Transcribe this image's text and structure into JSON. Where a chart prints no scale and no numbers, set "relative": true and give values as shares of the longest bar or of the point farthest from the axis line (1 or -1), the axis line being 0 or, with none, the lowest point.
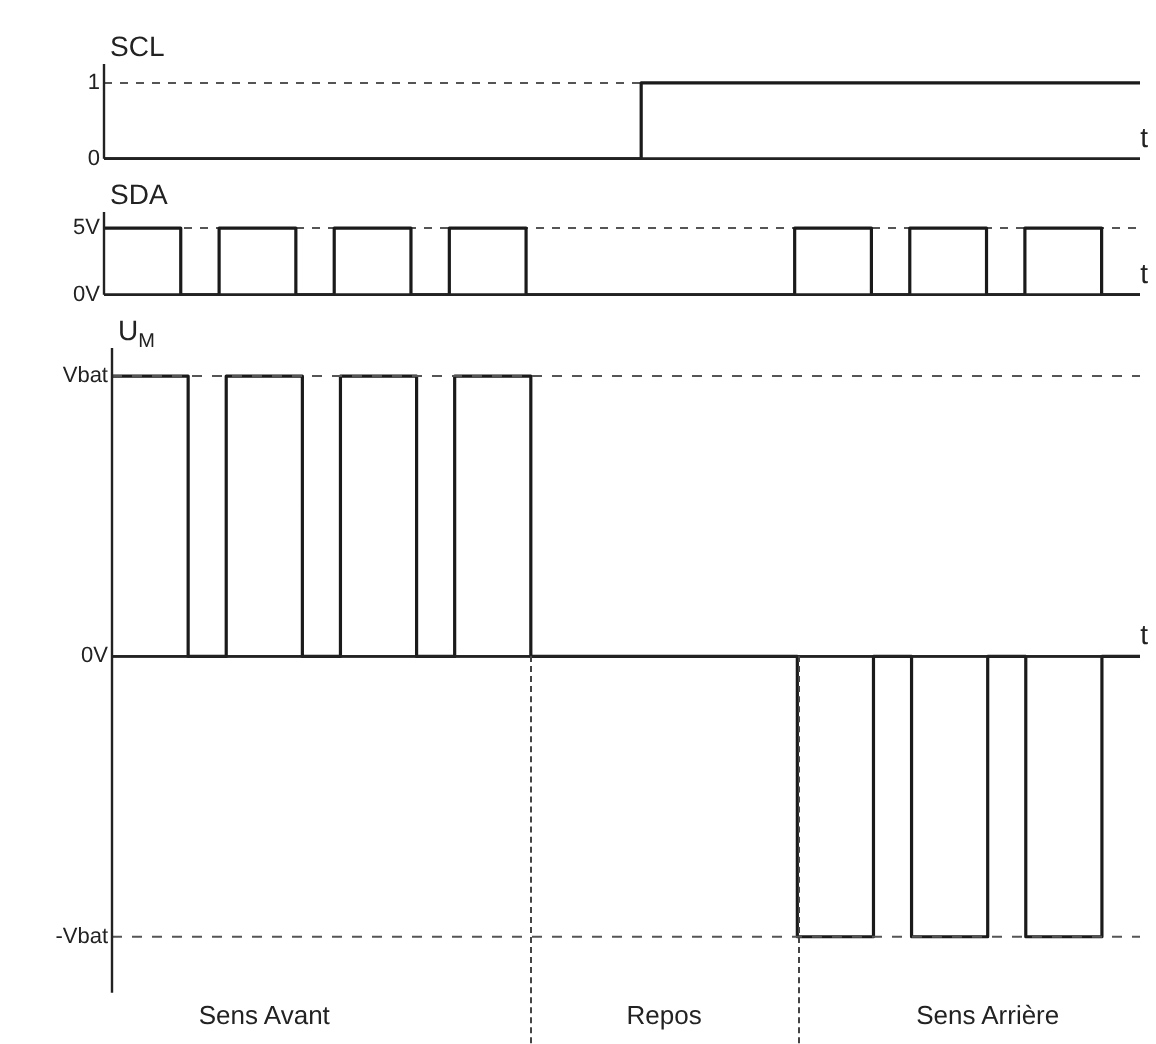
{
  "chart_data": [
    {
      "type": "step",
      "ylabel": "SCL",
      "xlabel": "t",
      "categories": [
        null,
        null,
        null,
        null,
        null,
        null,
        null,
        null,
        null,
        null,
        null,
        null,
        null,
        null,
        null,
        null,
        null,
        null,
        null,
        null,
        null,
        null,
        null,
        null,
        null,
        null,
        null,
        null,
        null,
        null,
        null,
        null,
        null,
        null,
        null,
        null,
        null,
        null,
        null,
        null,
        null,
        null,
        null,
        null,
        null,
        null,
        null,
        null,
        null,
        null,
        null,
        null,
        null,
        null,
        null
      ],
      "ylim": [
        0,
        1.25
      ],
      "yticks": [
        0,
        1
      ],
      "grid": "y",
      "tick_labels": "y",
      "series": [
        {
          "color": "#1a1a1a",
          "values": [
            0,
            0,
            0,
            0,
            0,
            0,
            0,
            0,
            0,
            0,
            0,
            0,
            0,
            0,
            0,
            0,
            0,
            0,
            0,
            0,
            0,
            0,
            0,
            0,
            0,
            0,
            0,
            0,
            1,
            1,
            1,
            1,
            1,
            1,
            1,
            1,
            1,
            1,
            1,
            1,
            1,
            1,
            1,
            1,
            1,
            1,
            1,
            1,
            1,
            1,
            1,
            1,
            1,
            1,
            1
          ]
        }
      ]
    },
    {
      "type": "step",
      "ylabel": "SDA",
      "xlabel": "t",
      "categories": [
        null,
        null,
        null,
        null,
        null,
        null,
        null,
        null,
        null,
        null,
        null,
        null,
        null,
        null,
        null,
        null,
        null,
        null,
        null,
        null,
        null,
        null,
        null,
        null,
        null,
        null,
        null,
        null,
        null,
        null,
        null,
        null,
        null,
        null,
        null,
        null,
        null,
        null,
        null,
        null,
        null,
        null,
        null,
        null,
        null,
        null,
        null,
        null,
        null,
        null,
        null,
        null,
        null,
        null,
        null
      ],
      "ylim": [
        0,
        6.2
      ],
      "yticks": [
        {
          "value": 0,
          "label": "0V"
        },
        {
          "value": 5,
          "label": "5V"
        }
      ],
      "grid": "y",
      "tick_labels": "y",
      "series": [
        {
          "color": "#1a1a1a",
          "values": [
            5,
            5,
            5,
            5,
            0,
            0,
            5,
            5,
            5,
            5,
            0,
            0,
            5,
            5,
            5,
            5,
            0,
            0,
            5,
            5,
            5,
            5,
            0,
            0,
            0,
            0,
            0,
            0,
            0,
            0,
            0,
            0,
            0,
            0,
            0,
            0,
            5,
            5,
            5,
            5,
            0,
            0,
            5,
            5,
            5,
            5,
            0,
            0,
            5,
            5,
            5,
            5,
            0,
            0,
            0
          ]
        }
      ]
    },
    {
      "type": "step",
      "ylabel": "U$_{M}$",
      "xlabel": "t",
      "categories": [
        null,
        null,
        null,
        null,
        null,
        null,
        null,
        null,
        "Sens Avant",
        null,
        null,
        null,
        null,
        null,
        null,
        null,
        null,
        null,
        null,
        null,
        null,
        null,
        null,
        null,
        null,
        null,
        null,
        null,
        null,
        "Repos",
        null,
        null,
        null,
        null,
        null,
        null,
        null,
        null,
        null,
        null,
        null,
        null,
        null,
        null,
        null,
        null,
        "Sens Arrière",
        null,
        null,
        null,
        null,
        null,
        null,
        null,
        null
      ],
      "relative": true,
      "ref_lines": [
        {
          "axis": "y",
          "value": 1,
          "label": "Vbat",
          "line_style": "dashed"
        },
        {
          "axis": "y",
          "value": 0,
          "label": "0V",
          "line_style": "solid",
          "color": "#222222"
        },
        {
          "axis": "y",
          "value": -1,
          "label": "-Vbat",
          "line_style": "dashed"
        }
      ],
      "series": [
        {
          "color": "#1a1a1a",
          "values": [
            1,
            1,
            1,
            1,
            0,
            0,
            1,
            1,
            1,
            1,
            0,
            0,
            1,
            1,
            1,
            1,
            0,
            0,
            1,
            1,
            1,
            1,
            0,
            0,
            0,
            0,
            0,
            0,
            0,
            0,
            0,
            0,
            0,
            0,
            0,
            0,
            -1,
            -1,
            -1,
            -1,
            0,
            0,
            -1,
            -1,
            -1,
            -1,
            0,
            0,
            -1,
            -1,
            -1,
            -1,
            0,
            0,
            0
          ]
        }
      ]
    }
  ]
}
